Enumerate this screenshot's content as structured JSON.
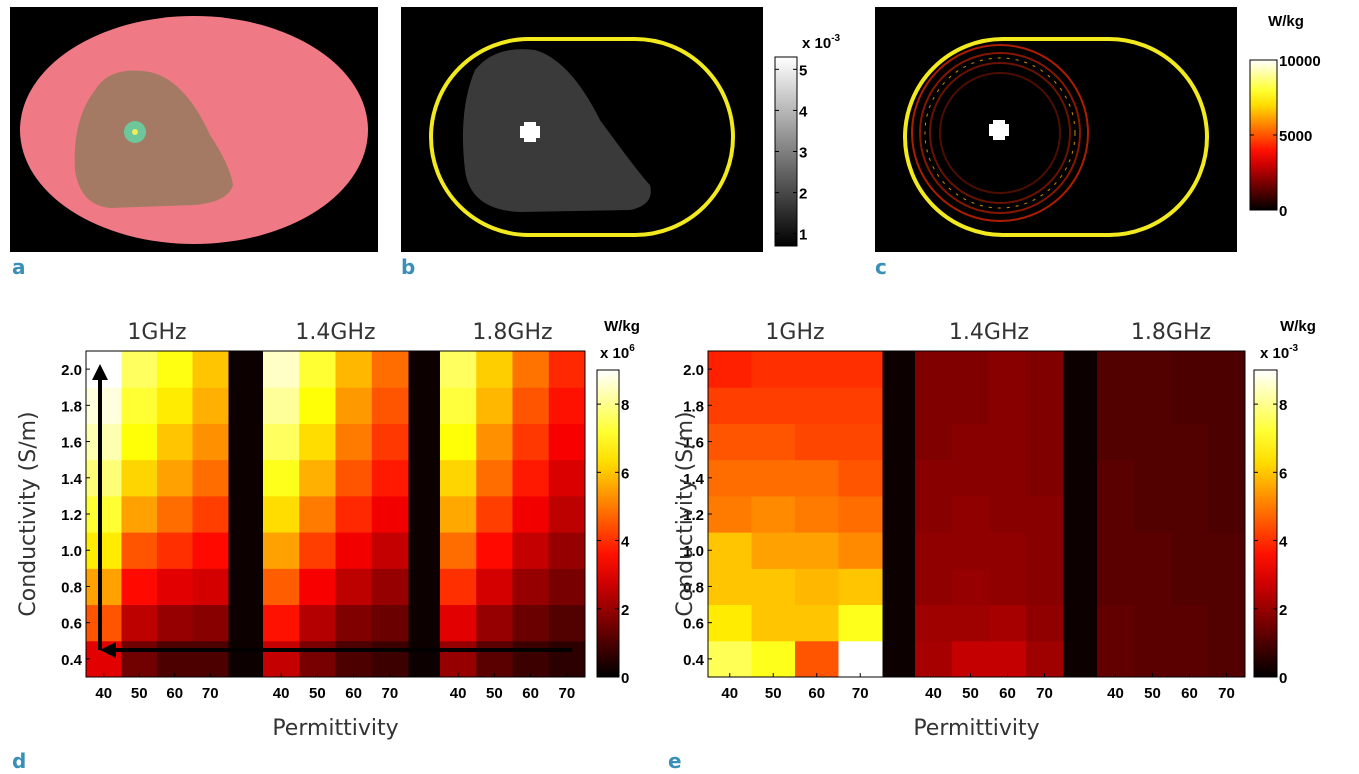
{
  "chart_data": [
    {
      "type": "segmentation",
      "panel": "a"
    },
    {
      "type": "map",
      "panel": "b",
      "colormap": "gray",
      "colorbar": {
        "multiplier": "x 10",
        "exponent": "-3",
        "clim": [
          0.7,
          5.3
        ],
        "ticks": [
          1,
          2,
          3,
          4,
          5
        ]
      }
    },
    {
      "type": "map",
      "panel": "c",
      "colormap": "hot",
      "colorbar": {
        "title": "W/kg",
        "clim": [
          0,
          10000
        ],
        "ticks": [
          0,
          5000,
          10000
        ]
      }
    },
    {
      "type": "heatmap",
      "panel": "d",
      "colormap": "hot",
      "xlabel": "Permittivity",
      "ylabel": "Conductivity  (S/m)",
      "xticks": [
        40,
        50,
        60,
        70
      ],
      "ylim": [
        0.3,
        2.1
      ],
      "yticks": [
        0.4,
        0.6,
        0.8,
        {
          "value": 1,
          "label": "1.0"
        },
        1.2,
        1.4,
        1.6,
        1.8,
        {
          "value": 2,
          "label": "2.0"
        }
      ],
      "colorbar": {
        "title": "W/kg",
        "multiplier": "x 10",
        "exponent": "6",
        "clim": [
          0,
          9
        ],
        "ticks": [
          0,
          2,
          4,
          6,
          8
        ]
      },
      "series": [
        {
          "name": "1GHz",
          "values": [
            [
              3.0,
              1.5,
              1.0,
              1.0
            ],
            [
              4.5,
              2.5,
              2.0,
              1.8
            ],
            [
              5.5,
              3.5,
              3.0,
              2.8
            ],
            [
              6.5,
              4.5,
              4.0,
              3.5
            ],
            [
              7.2,
              5.5,
              4.8,
              4.2
            ],
            [
              7.8,
              6.2,
              5.5,
              4.8
            ],
            [
              8.3,
              6.8,
              6.0,
              5.3
            ],
            [
              8.7,
              7.2,
              6.5,
              5.7
            ],
            [
              9.0,
              7.6,
              6.9,
              6.0
            ]
          ]
        },
        {
          "name": "1.4GHz",
          "values": [
            [
              2.6,
              1.6,
              1.0,
              0.8
            ],
            [
              3.6,
              2.4,
              1.7,
              1.4
            ],
            [
              4.6,
              3.3,
              2.5,
              2.0
            ],
            [
              5.5,
              4.2,
              3.2,
              2.6
            ],
            [
              6.3,
              5.0,
              3.9,
              3.2
            ],
            [
              7.0,
              5.7,
              4.5,
              3.7
            ],
            [
              7.6,
              6.3,
              5.0,
              4.1
            ],
            [
              8.1,
              6.8,
              5.4,
              4.5
            ],
            [
              8.5,
              7.2,
              5.8,
              4.8
            ]
          ]
        },
        {
          "name": "1.8GHz",
          "values": [
            [
              2.0,
              1.2,
              0.8,
              0.6
            ],
            [
              3.0,
              2.0,
              1.4,
              1.1
            ],
            [
              4.0,
              2.8,
              2.0,
              1.6
            ],
            [
              4.8,
              3.5,
              2.6,
              2.0
            ],
            [
              5.6,
              4.2,
              3.2,
              2.5
            ],
            [
              6.2,
              4.8,
              3.7,
              2.9
            ],
            [
              6.8,
              5.3,
              4.1,
              3.3
            ],
            [
              7.3,
              5.8,
              4.5,
              3.6
            ],
            [
              7.6,
              6.1,
              4.9,
              3.9
            ]
          ]
        }
      ]
    },
    {
      "type": "heatmap",
      "panel": "e",
      "colormap": "hot",
      "xlabel": "Permittivity",
      "ylabel": "Conductivity  (S/m)",
      "xticks": [
        40,
        50,
        60,
        70
      ],
      "ylim": [
        0.3,
        2.1
      ],
      "yticks": [
        0.4,
        0.6,
        0.8,
        {
          "value": 1,
          "label": "1.0"
        },
        1.2,
        1.4,
        1.6,
        1.8,
        {
          "value": 2,
          "label": "2.0"
        }
      ],
      "colorbar": {
        "title": "W/kg",
        "multiplier": "x 10",
        "exponent": "-3",
        "clim": [
          0,
          9
        ],
        "ticks": [
          0,
          2,
          4,
          6,
          8
        ]
      },
      "series": [
        {
          "name": "1GHz",
          "values": [
            [
              7.5,
              7.0,
              4.5,
              9.0
            ],
            [
              6.5,
              6.0,
              6.0,
              7.0
            ],
            [
              6.0,
              6.0,
              5.8,
              6.0
            ],
            [
              6.0,
              5.5,
              5.5,
              5.2
            ],
            [
              5.0,
              5.2,
              5.0,
              4.8
            ],
            [
              4.8,
              4.8,
              4.8,
              4.5
            ],
            [
              4.5,
              4.5,
              4.3,
              4.3
            ],
            [
              4.2,
              4.2,
              4.2,
              4.2
            ],
            [
              3.8,
              4.0,
              4.0,
              4.0
            ]
          ]
        },
        {
          "name": "1.4GHz",
          "values": [
            [
              2.2,
              2.6,
              2.6,
              2.1
            ],
            [
              2.1,
              2.1,
              2.2,
              1.9
            ],
            [
              1.9,
              2.0,
              1.9,
              1.8
            ],
            [
              1.9,
              1.9,
              1.9,
              1.8
            ],
            [
              1.8,
              1.9,
              1.8,
              1.8
            ],
            [
              1.8,
              1.8,
              1.8,
              1.7
            ],
            [
              1.7,
              1.8,
              1.8,
              1.7
            ],
            [
              1.7,
              1.7,
              1.8,
              1.7
            ],
            [
              1.7,
              1.7,
              1.8,
              1.7
            ]
          ]
        },
        {
          "name": "1.8GHz",
          "values": [
            [
              1.3,
              1.2,
              1.2,
              1.1
            ],
            [
              1.3,
              1.2,
              1.2,
              1.1
            ],
            [
              1.2,
              1.2,
              1.1,
              1.1
            ],
            [
              1.2,
              1.2,
              1.1,
              1.1
            ],
            [
              1.2,
              1.1,
              1.1,
              1.0
            ],
            [
              1.2,
              1.1,
              1.1,
              1.0
            ],
            [
              1.1,
              1.1,
              1.1,
              1.0
            ],
            [
              1.1,
              1.1,
              1.0,
              1.0
            ],
            [
              1.1,
              1.1,
              1.0,
              1.0
            ]
          ]
        }
      ]
    }
  ]
}
